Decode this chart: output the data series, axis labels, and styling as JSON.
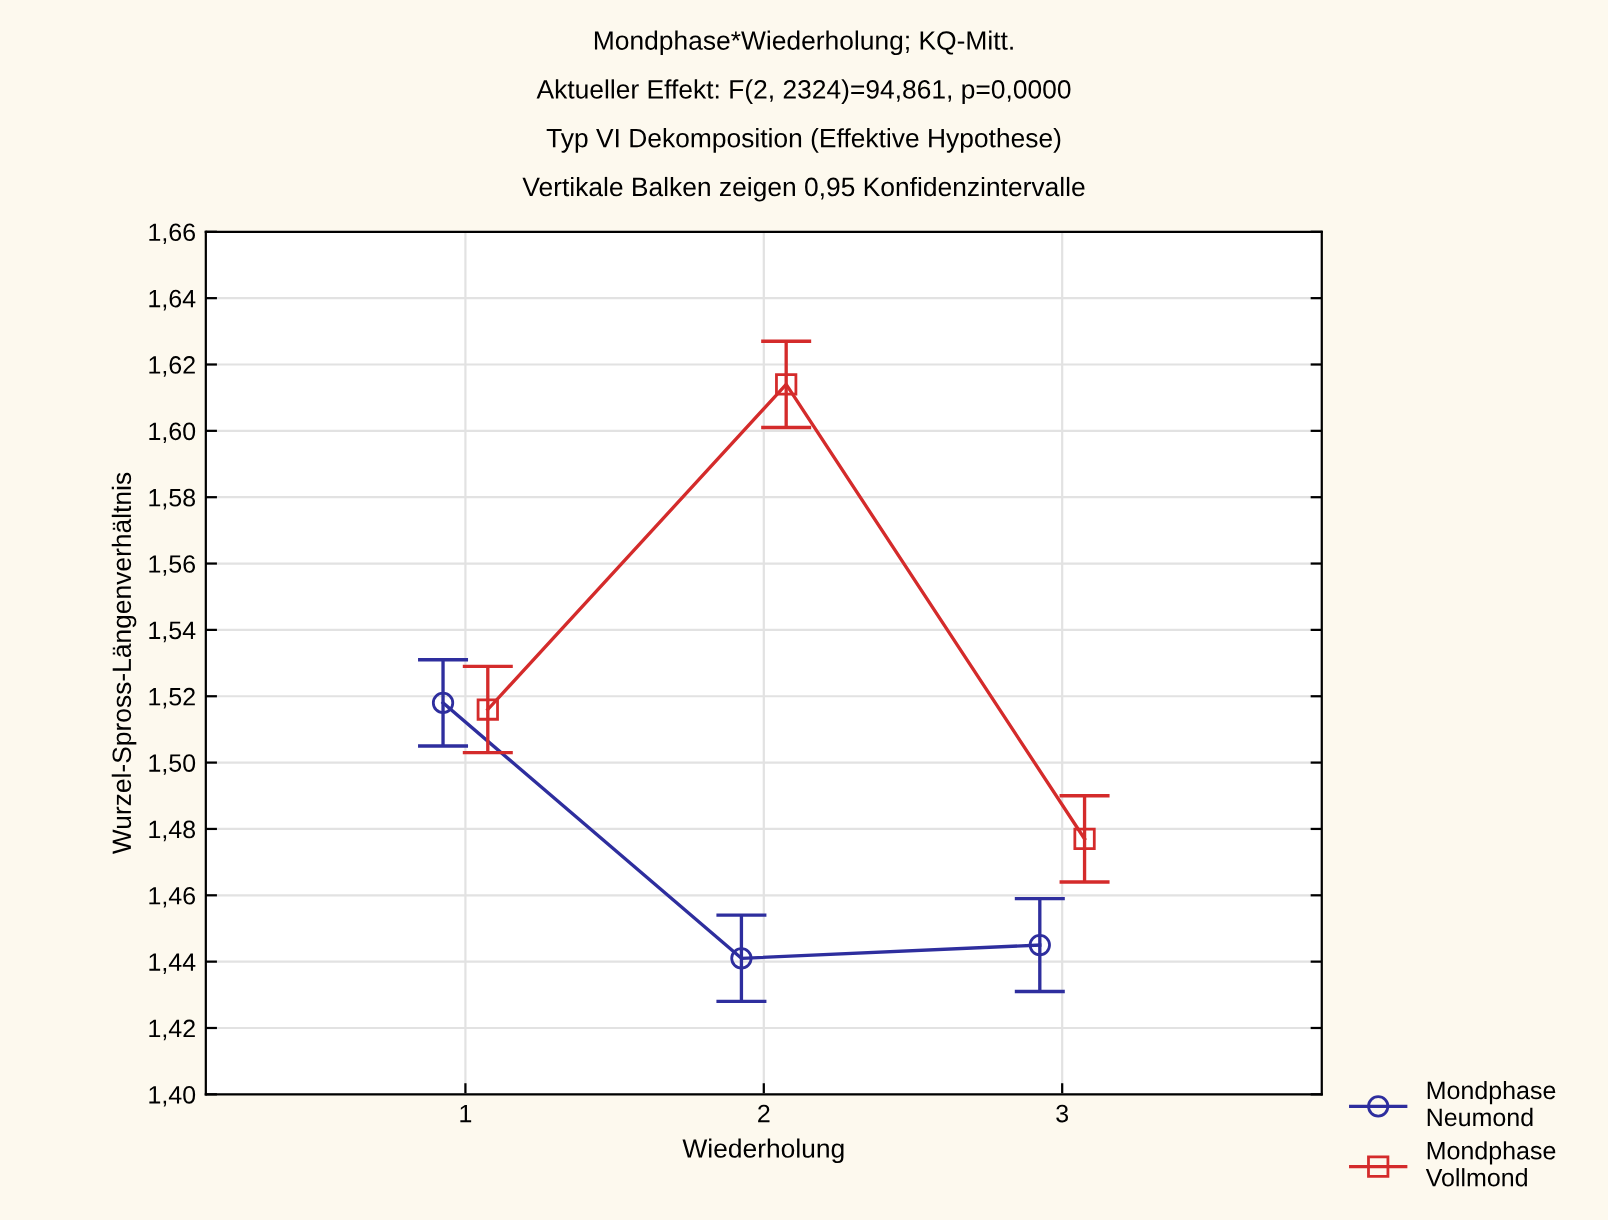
{
  "chart_data": {
    "type": "line",
    "title": "Mondphase*Wiederholung; KQ-Mitt.",
    "subtitle": "Aktueller Effekt: F(2, 2324)=94,861, p=0,0000",
    "annotations": [
      "Typ VI Dekomposition (Effektive Hypothese)",
      "Vertikale Balken zeigen 0,95 Konfidenzintervalle"
    ],
    "xlabel": "Wiederholung",
    "ylabel": "Wurzel-Spross-Längenverhältnis",
    "categories": [
      "1",
      "2",
      "3"
    ],
    "series": [
      {
        "name": "Mondphase\nNeumond",
        "color": "#2e2e9e",
        "marker": "circle",
        "values": [
          1.518,
          1.441,
          1.445
        ],
        "errors": [
          0.013,
          0.013,
          0.014
        ]
      },
      {
        "name": "Mondphase\nVollmond",
        "color": "#d42b2b",
        "marker": "square",
        "values": [
          1.516,
          1.614,
          1.477
        ],
        "errors": [
          0.013,
          0.013,
          0.013
        ]
      }
    ],
    "ylim": [
      1.4,
      1.66
    ],
    "yticks": [
      {
        "value": 1.4,
        "label": "1,40"
      },
      {
        "value": 1.42,
        "label": "1,42"
      },
      {
        "value": 1.44,
        "label": "1,44"
      },
      {
        "value": 1.46,
        "label": "1,46"
      },
      {
        "value": 1.48,
        "label": "1,48"
      },
      {
        "value": 1.5,
        "label": "1,50"
      },
      {
        "value": 1.52,
        "label": "1,52"
      },
      {
        "value": 1.54,
        "label": "1,54"
      },
      {
        "value": 1.56,
        "label": "1,56"
      },
      {
        "value": 1.58,
        "label": "1,58"
      },
      {
        "value": 1.6,
        "label": "1,60"
      },
      {
        "value": 1.62,
        "label": "1,62"
      },
      {
        "value": 1.64,
        "label": "1,64"
      },
      {
        "value": 1.66,
        "label": "1,66"
      }
    ],
    "grid": true,
    "legend": "bottom right",
    "line_style": "solid"
  }
}
